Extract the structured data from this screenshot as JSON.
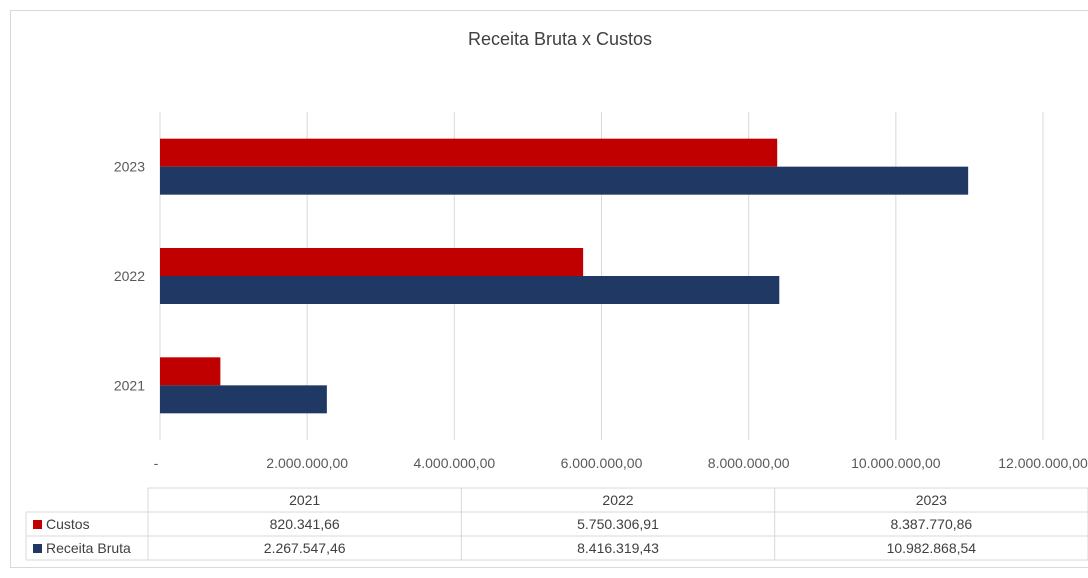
{
  "chart_data": {
    "type": "bar",
    "orientation": "horizontal",
    "title": "Receita Bruta x Custos",
    "categories": [
      "2021",
      "2022",
      "2023"
    ],
    "series": [
      {
        "name": "Custos",
        "color": "#c00000",
        "values": [
          820341.66,
          5750306.91,
          8387770.86
        ],
        "value_labels": [
          "820.341,66",
          "5.750.306,91",
          "8.387.770,86"
        ]
      },
      {
        "name": "Receita Bruta",
        "color": "#1f3864",
        "values": [
          2267547.46,
          8416319.43,
          10982868.54
        ],
        "value_labels": [
          "2.267.547,46",
          "8.416.319,43",
          "10.982.868,54"
        ]
      }
    ],
    "xlim": [
      0,
      12000000
    ],
    "x_ticks": [
      0,
      2000000,
      4000000,
      6000000,
      8000000,
      10000000,
      12000000
    ],
    "x_tick_labels": [
      "-",
      "2.000.000,00",
      "4.000.000,00",
      "6.000.000,00",
      "8.000.000,00",
      "10.000.000,00",
      "12.000.000,00"
    ],
    "grid": true,
    "legend": "data-table",
    "data_table": true
  }
}
